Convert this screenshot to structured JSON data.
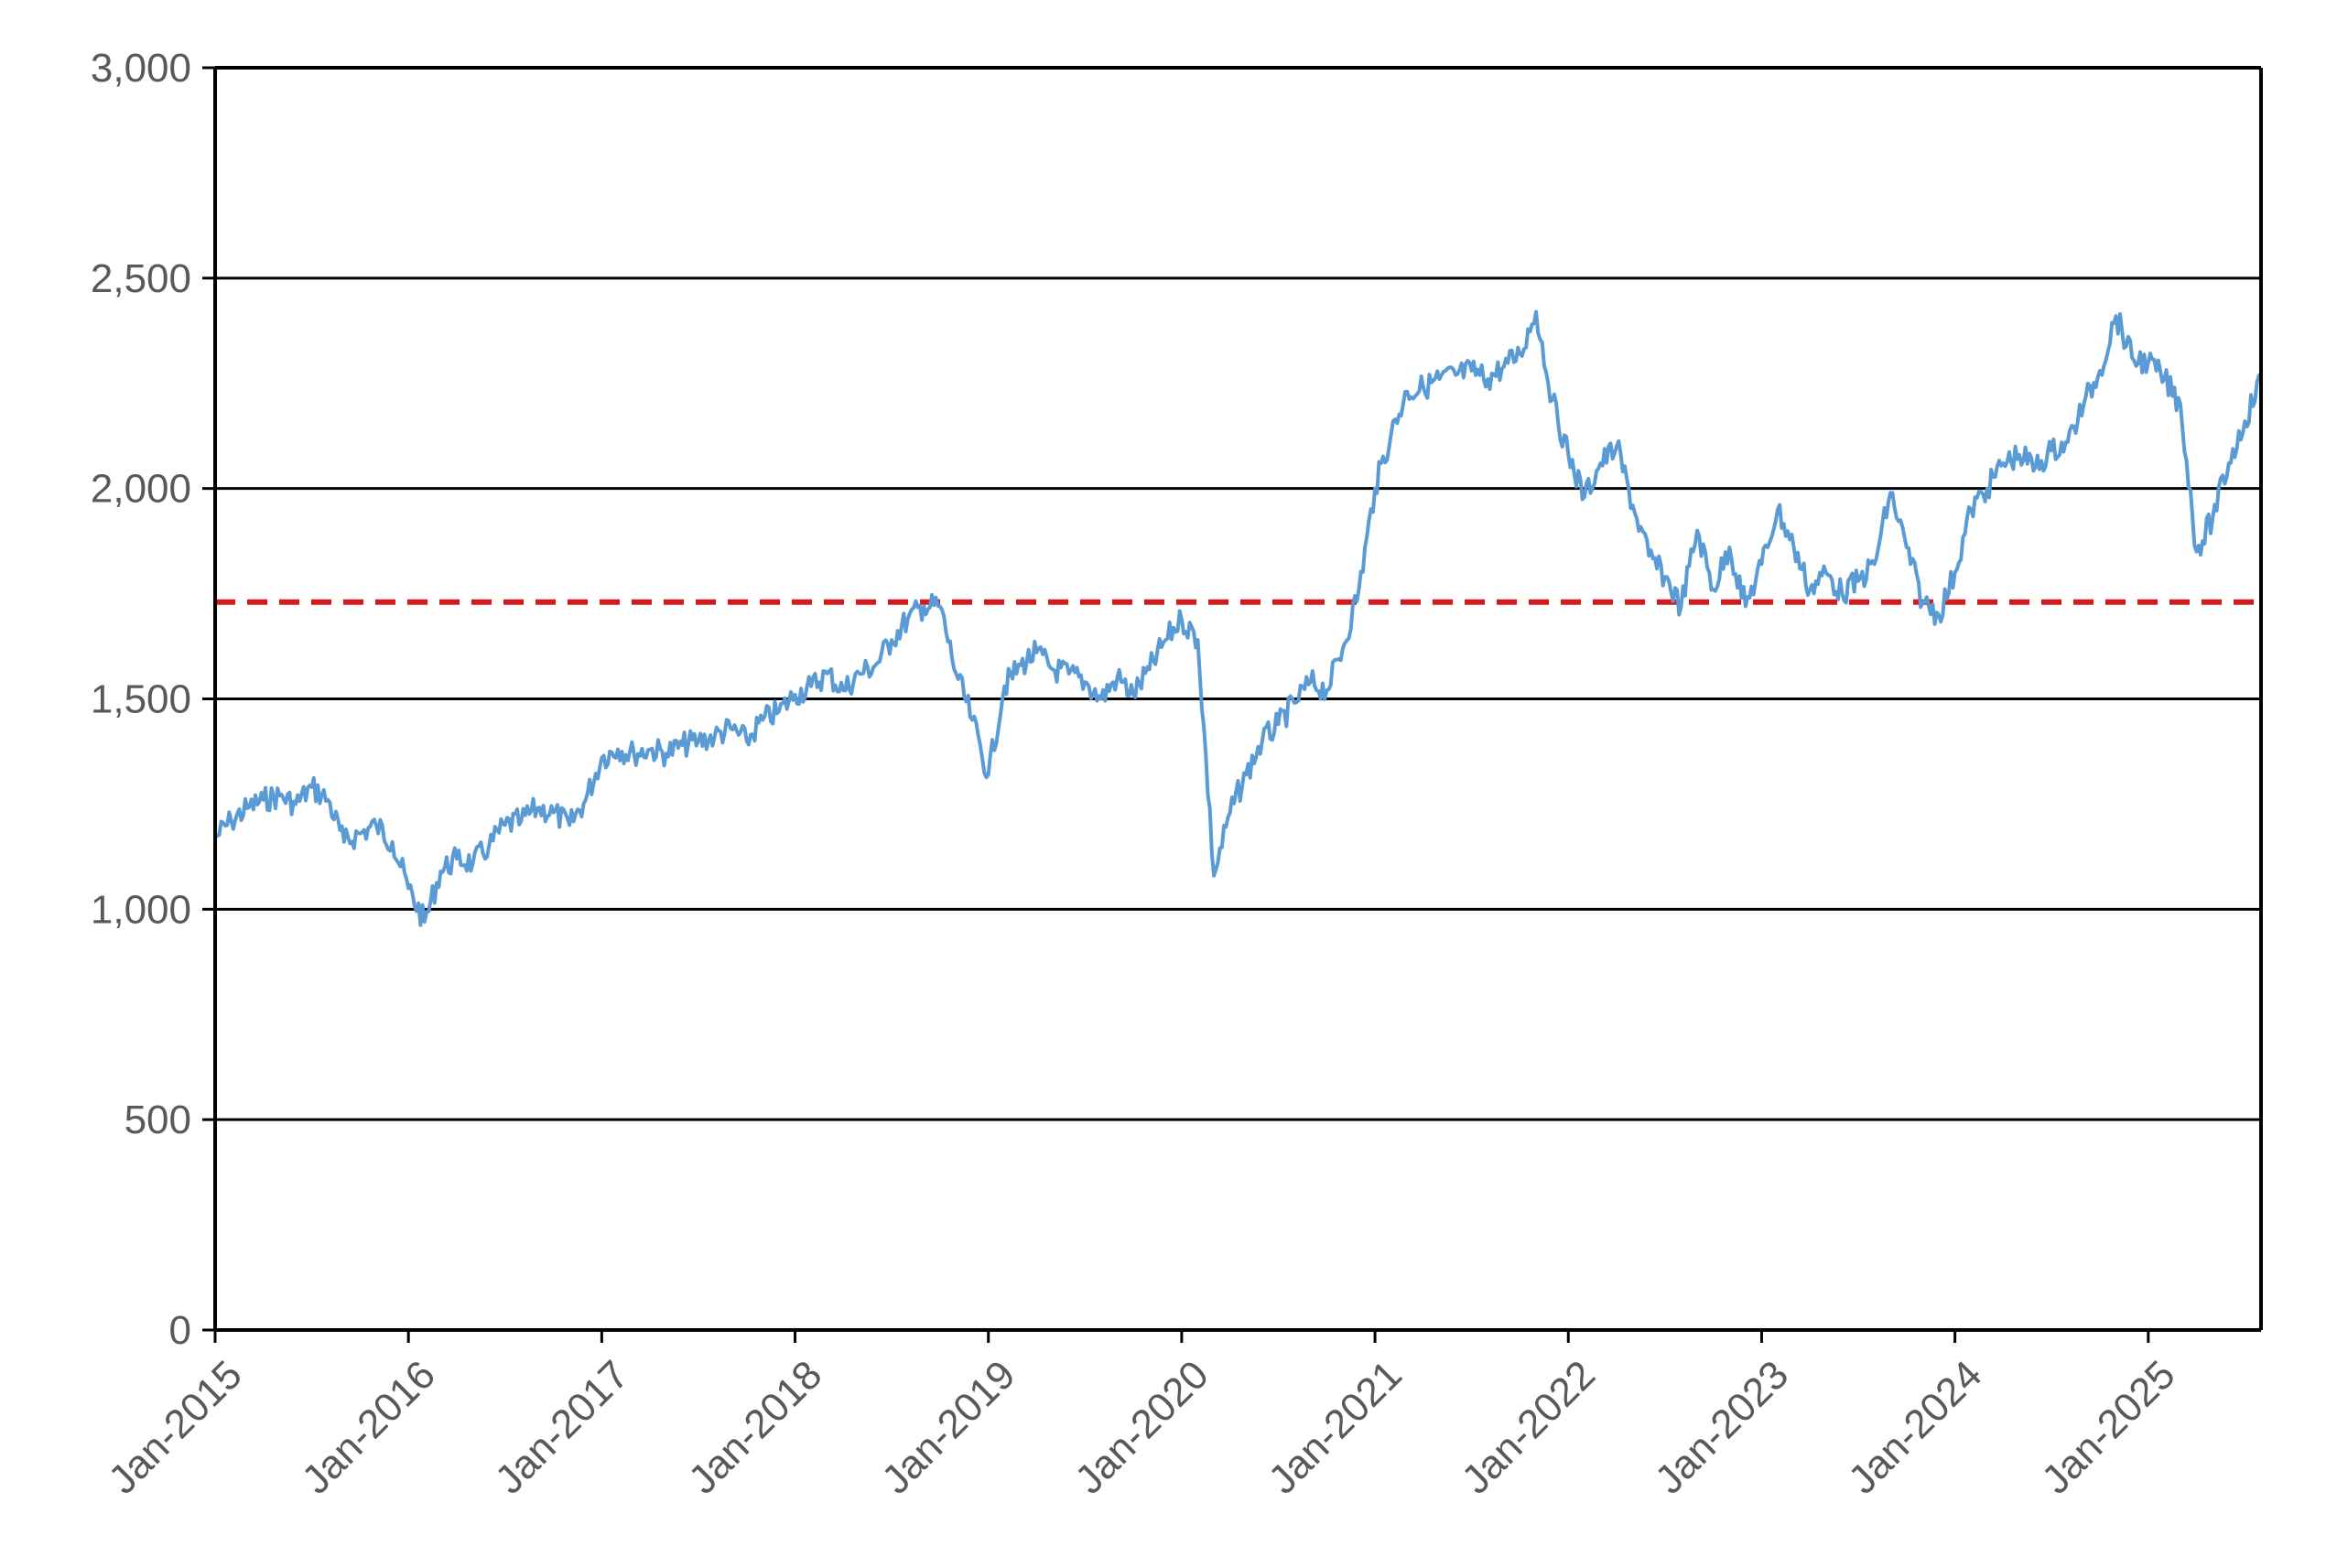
{
  "chart_data": {
    "type": "line",
    "title": "",
    "xlabel": "",
    "ylabel": "",
    "ylim": [
      0,
      3000
    ],
    "xlim": [
      "2015-01",
      "2025-08"
    ],
    "grid": "horizontal",
    "legend": "none",
    "y_ticks": [
      "0",
      "500",
      "1,000",
      "1,500",
      "2,000",
      "2,500",
      "3,000"
    ],
    "y_tick_values": [
      0,
      500,
      1000,
      1500,
      2000,
      2500,
      3000
    ],
    "x_ticks": [
      "Jan-2015",
      "Jan-2016",
      "Jan-2017",
      "Jan-2018",
      "Jan-2019",
      "Jan-2020",
      "Jan-2021",
      "Jan-2022",
      "Jan-2023",
      "Jan-2024",
      "Jan-2025"
    ],
    "x_tick_values": [
      "2015-01",
      "2016-01",
      "2017-01",
      "2018-01",
      "2019-01",
      "2020-01",
      "2021-01",
      "2022-01",
      "2023-01",
      "2024-01",
      "2025-01"
    ],
    "reference_line": {
      "y": 1730,
      "color": "#d7191c",
      "style": "dashed"
    },
    "series": [
      {
        "color": "#5b9bd5",
        "x": [
          "2015-01",
          "2015-02",
          "2015-03",
          "2015-04",
          "2015-05",
          "2015-06",
          "2015-07",
          "2015-08",
          "2015-09",
          "2015-10",
          "2015-11",
          "2015-12",
          "2016-01",
          "2016-02",
          "2016-03",
          "2016-04",
          "2016-05",
          "2016-06",
          "2016-07",
          "2016-08",
          "2016-09",
          "2016-10",
          "2016-11",
          "2016-12",
          "2017-01",
          "2017-02",
          "2017-03",
          "2017-04",
          "2017-05",
          "2017-06",
          "2017-07",
          "2017-08",
          "2017-09",
          "2017-10",
          "2017-11",
          "2017-12",
          "2018-01",
          "2018-02",
          "2018-03",
          "2018-04",
          "2018-05",
          "2018-06",
          "2018-07",
          "2018-08",
          "2018-09",
          "2018-10",
          "2018-11",
          "2018-12",
          "2019-01",
          "2019-02",
          "2019-03",
          "2019-04",
          "2019-05",
          "2019-06",
          "2019-07",
          "2019-08",
          "2019-09",
          "2019-10",
          "2019-11",
          "2019-12",
          "2020-01",
          "2020-02",
          "2020-03",
          "2020-04",
          "2020-05",
          "2020-06",
          "2020-07",
          "2020-08",
          "2020-09",
          "2020-10",
          "2020-11",
          "2020-12",
          "2021-01",
          "2021-02",
          "2021-03",
          "2021-04",
          "2021-05",
          "2021-06",
          "2021-07",
          "2021-08",
          "2021-09",
          "2021-10",
          "2021-11",
          "2021-12",
          "2022-01",
          "2022-02",
          "2022-03",
          "2022-04",
          "2022-05",
          "2022-06",
          "2022-07",
          "2022-08",
          "2022-09",
          "2022-10",
          "2022-11",
          "2022-12",
          "2023-01",
          "2023-02",
          "2023-03",
          "2023-04",
          "2023-05",
          "2023-06",
          "2023-07",
          "2023-08",
          "2023-09",
          "2023-10",
          "2023-11",
          "2023-12",
          "2024-01",
          "2024-02",
          "2024-03",
          "2024-04",
          "2024-05",
          "2024-06",
          "2024-07",
          "2024-08",
          "2024-09",
          "2024-10",
          "2024-11",
          "2024-12",
          "2025-01",
          "2025-02",
          "2025-03",
          "2025-04",
          "2025-05",
          "2025-06",
          "2025-07",
          "2025-08"
        ],
        "values": [
          1170,
          1210,
          1240,
          1260,
          1270,
          1250,
          1290,
          1260,
          1160,
          1180,
          1200,
          1160,
          1050,
          970,
          1090,
          1120,
          1110,
          1150,
          1200,
          1210,
          1240,
          1230,
          1200,
          1260,
          1360,
          1380,
          1370,
          1380,
          1370,
          1390,
          1400,
          1410,
          1430,
          1400,
          1450,
          1470,
          1510,
          1530,
          1560,
          1520,
          1560,
          1580,
          1640,
          1690,
          1720,
          1720,
          1560,
          1450,
          1320,
          1530,
          1580,
          1610,
          1570,
          1560,
          1540,
          1500,
          1550,
          1510,
          1570,
          1640,
          1690,
          1640,
          1080,
          1230,
          1320,
          1400,
          1440,
          1490,
          1540,
          1520,
          1620,
          1760,
          2000,
          2130,
          2230,
          2240,
          2260,
          2270,
          2280,
          2260,
          2290,
          2320,
          2420,
          2210,
          2080,
          1980,
          2060,
          2100,
          1960,
          1840,
          1790,
          1720,
          1900,
          1760,
          1860,
          1720,
          1820,
          1950,
          1860,
          1760,
          1800,
          1750,
          1780,
          1820,
          1990,
          1860,
          1730,
          1700,
          1800,
          1950,
          2000,
          2060,
          2080,
          2050,
          2090,
          2110,
          2200,
          2280,
          2410,
          2310,
          2300,
          2260,
          2200,
          1850,
          1930,
          2060,
          2160,
          2260
        ]
      }
    ]
  }
}
